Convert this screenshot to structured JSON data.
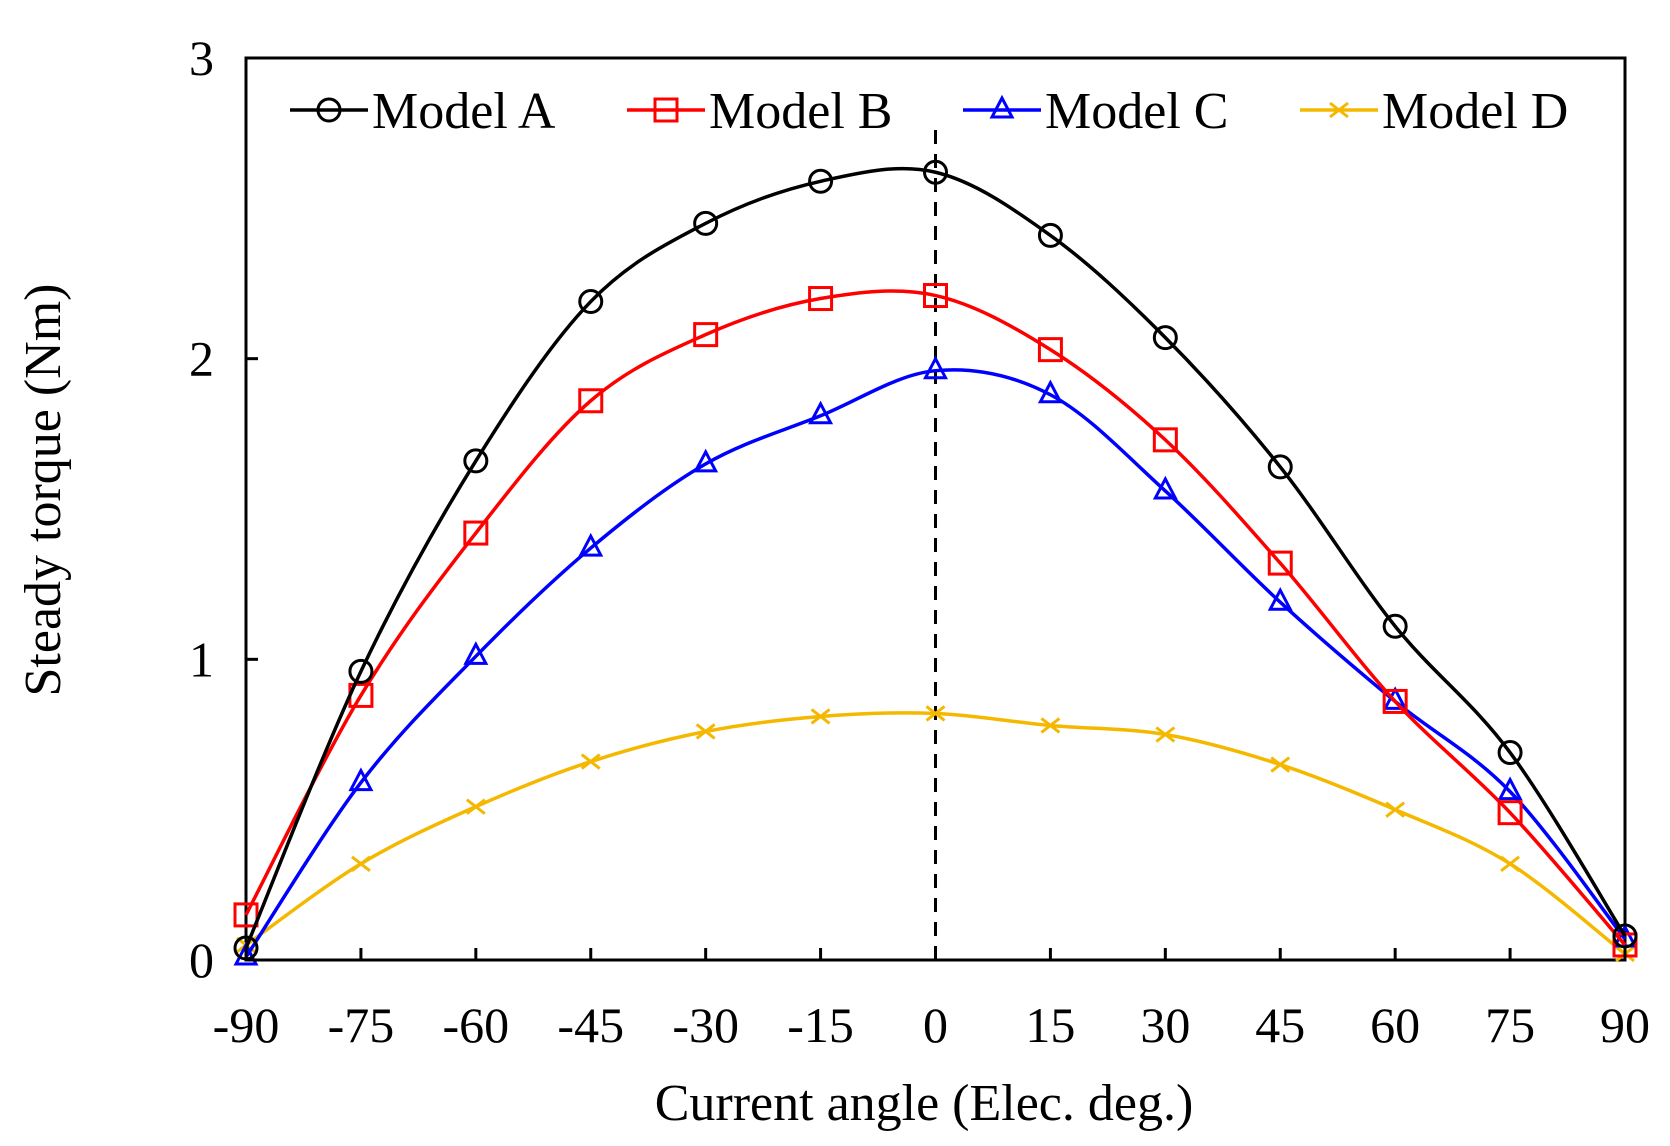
{
  "chart_data": {
    "type": "line",
    "xlabel": "Current angle  (Elec. deg.)",
    "ylabel": "Steady torque  (Nm)",
    "x": [
      -90,
      -75,
      -60,
      -45,
      -30,
      -15,
      0,
      15,
      30,
      45,
      60,
      75,
      90
    ],
    "x_tick_labels": [
      "-90",
      "-75",
      "-60",
      "-45",
      "-30",
      "-15",
      "0",
      "15",
      "30",
      "45",
      "60",
      "75",
      "90"
    ],
    "y_tick_labels": [
      "0",
      "1",
      "2",
      "3"
    ],
    "xlim": [
      -90,
      90
    ],
    "ylim": [
      0,
      3
    ],
    "grid": false,
    "legend_position": "top",
    "reference_line": {
      "x": 0,
      "style": "dashed"
    },
    "series": [
      {
        "name": "Model A",
        "color": "#000000",
        "marker": "circle",
        "values": [
          0.04,
          0.96,
          1.66,
          2.19,
          2.45,
          2.59,
          2.62,
          2.41,
          2.07,
          1.64,
          1.11,
          0.69,
          0.08
        ]
      },
      {
        "name": "Model B",
        "color": "#ff0000",
        "marker": "square",
        "values": [
          0.15,
          0.88,
          1.42,
          1.86,
          2.08,
          2.2,
          2.21,
          2.03,
          1.73,
          1.32,
          0.86,
          0.49,
          0.05
        ]
      },
      {
        "name": "Model C",
        "color": "#0000ff",
        "marker": "triangle",
        "values": [
          0.01,
          0.59,
          1.01,
          1.37,
          1.65,
          1.81,
          1.96,
          1.88,
          1.56,
          1.19,
          0.86,
          0.56,
          0.07
        ]
      },
      {
        "name": "Model D",
        "color": "#f5b800",
        "marker": "x",
        "values": [
          0.05,
          0.32,
          0.51,
          0.66,
          0.76,
          0.81,
          0.82,
          0.78,
          0.75,
          0.65,
          0.5,
          0.32,
          0.02
        ]
      }
    ]
  }
}
